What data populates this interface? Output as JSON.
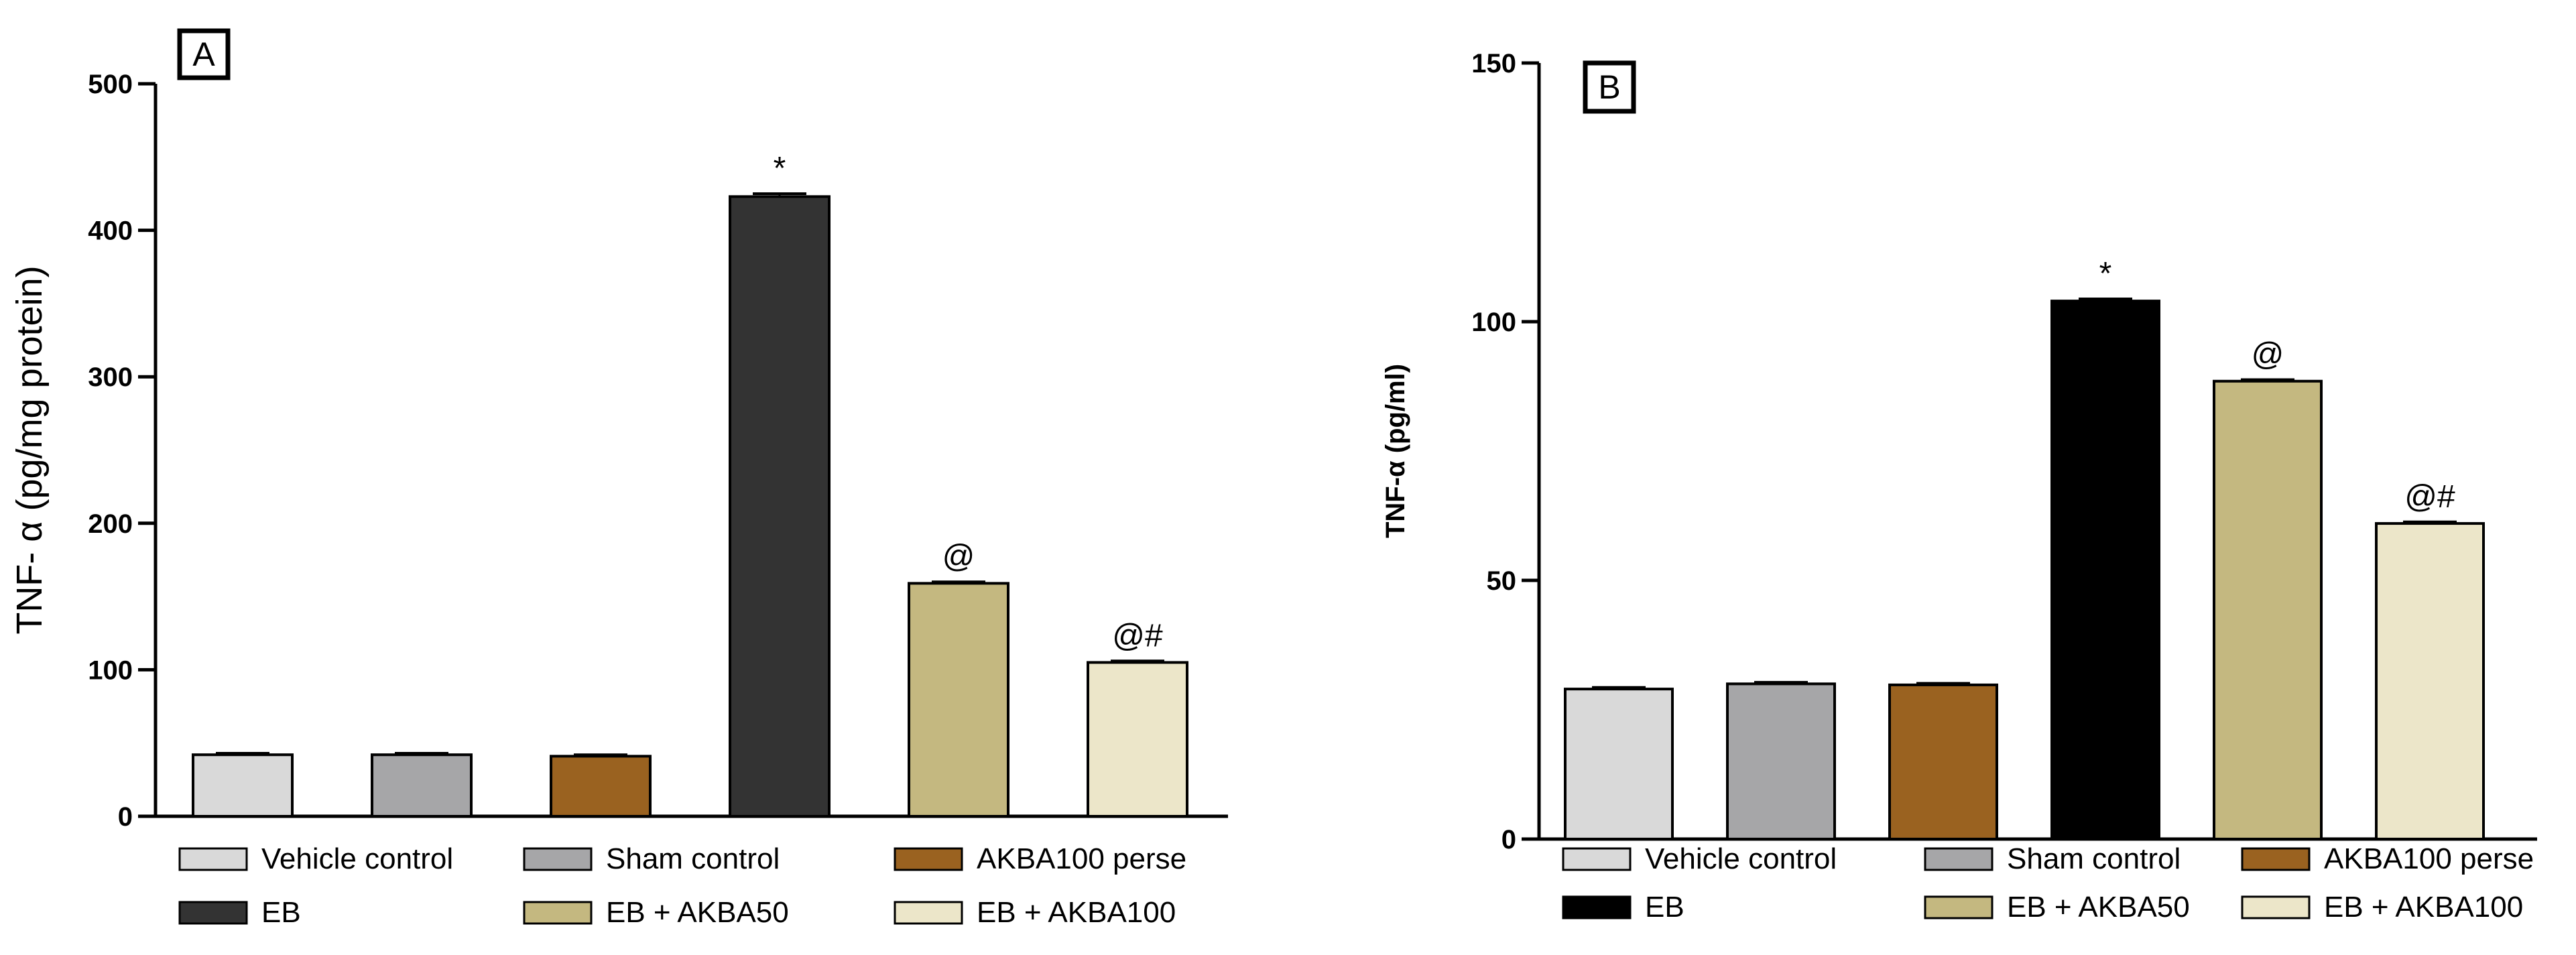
{
  "chart_data": [
    {
      "type": "bar",
      "panel_label": "A",
      "ylabel": "TNF- α (pg/mg protein)",
      "xlabel": "",
      "ylim": [
        0,
        500
      ],
      "yticks": [
        0,
        100,
        200,
        300,
        400,
        500
      ],
      "grid": false,
      "categories": [
        "Vehicle control",
        "Sham control",
        "AKBA100 perse",
        "EB",
        "EB + AKBA50",
        "EB + AKBA100"
      ],
      "values": [
        42,
        42,
        41,
        423,
        159,
        105
      ],
      "errors": [
        1,
        1,
        1,
        2,
        1,
        1
      ],
      "annotations": [
        "",
        "",
        "",
        "*",
        "@",
        "@#"
      ],
      "colors": [
        "#d9d9d9",
        "#a6a6a8",
        "#9a6220",
        "#333333",
        "#c4b880",
        "#ece6c9"
      ],
      "legend_position": "bottom"
    },
    {
      "type": "bar",
      "panel_label": "B",
      "ylabel": "TNF-α (pg/ml)",
      "xlabel": "",
      "ylim": [
        0,
        150
      ],
      "yticks": [
        0,
        50,
        100,
        150
      ],
      "grid": false,
      "categories": [
        "Vehicle control",
        "Sham control",
        "AKBA100 perse",
        "EB",
        "EB + AKBA50",
        "EB + AKBA100"
      ],
      "values": [
        29,
        30,
        29.8,
        104,
        88.5,
        61
      ],
      "errors": [
        0.3,
        0.3,
        0.3,
        0.4,
        0.3,
        0.3
      ],
      "annotations": [
        "",
        "",
        "",
        "*",
        "@",
        "@#"
      ],
      "colors": [
        "#d9d9d9",
        "#a6a6a8",
        "#9a6220",
        "#000000",
        "#c4b880",
        "#ece6c9"
      ],
      "legend_position": "bottom"
    }
  ]
}
